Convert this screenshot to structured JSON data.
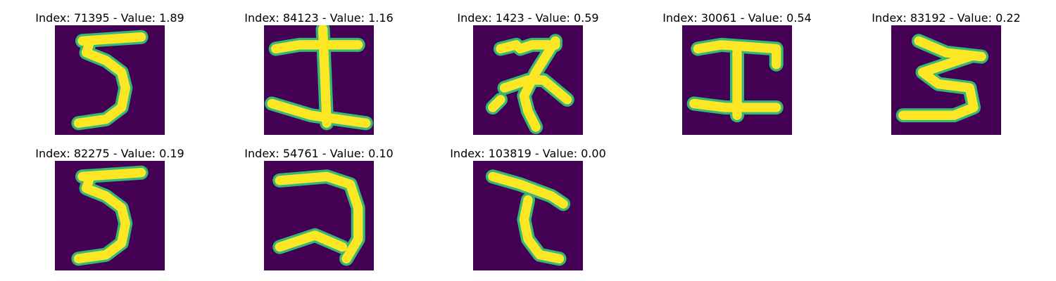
{
  "panels": [
    {
      "title": "Index: 71395 - Value: 1.89",
      "glyph": "glyph-5"
    },
    {
      "title": "Index: 84123 - Value: 1.16",
      "glyph": "glyph-tsu-cross"
    },
    {
      "title": "Index: 1423 - Value: 0.59",
      "glyph": "glyph-na"
    },
    {
      "title": "Index: 30061 - Value: 0.54",
      "glyph": "glyph-I"
    },
    {
      "title": "Index: 83192 - Value: 0.22",
      "glyph": "glyph-3"
    },
    {
      "title": "Index: 82275 - Value: 0.19",
      "glyph": "glyph-5"
    },
    {
      "title": "Index: 54761 - Value: 0.10",
      "glyph": "glyph-ko"
    },
    {
      "title": "Index: 103819 - Value: 0.00",
      "glyph": "glyph-te"
    }
  ],
  "colors": {
    "background": "#440154",
    "stroke": "#fde725",
    "edge": "#35b779"
  }
}
